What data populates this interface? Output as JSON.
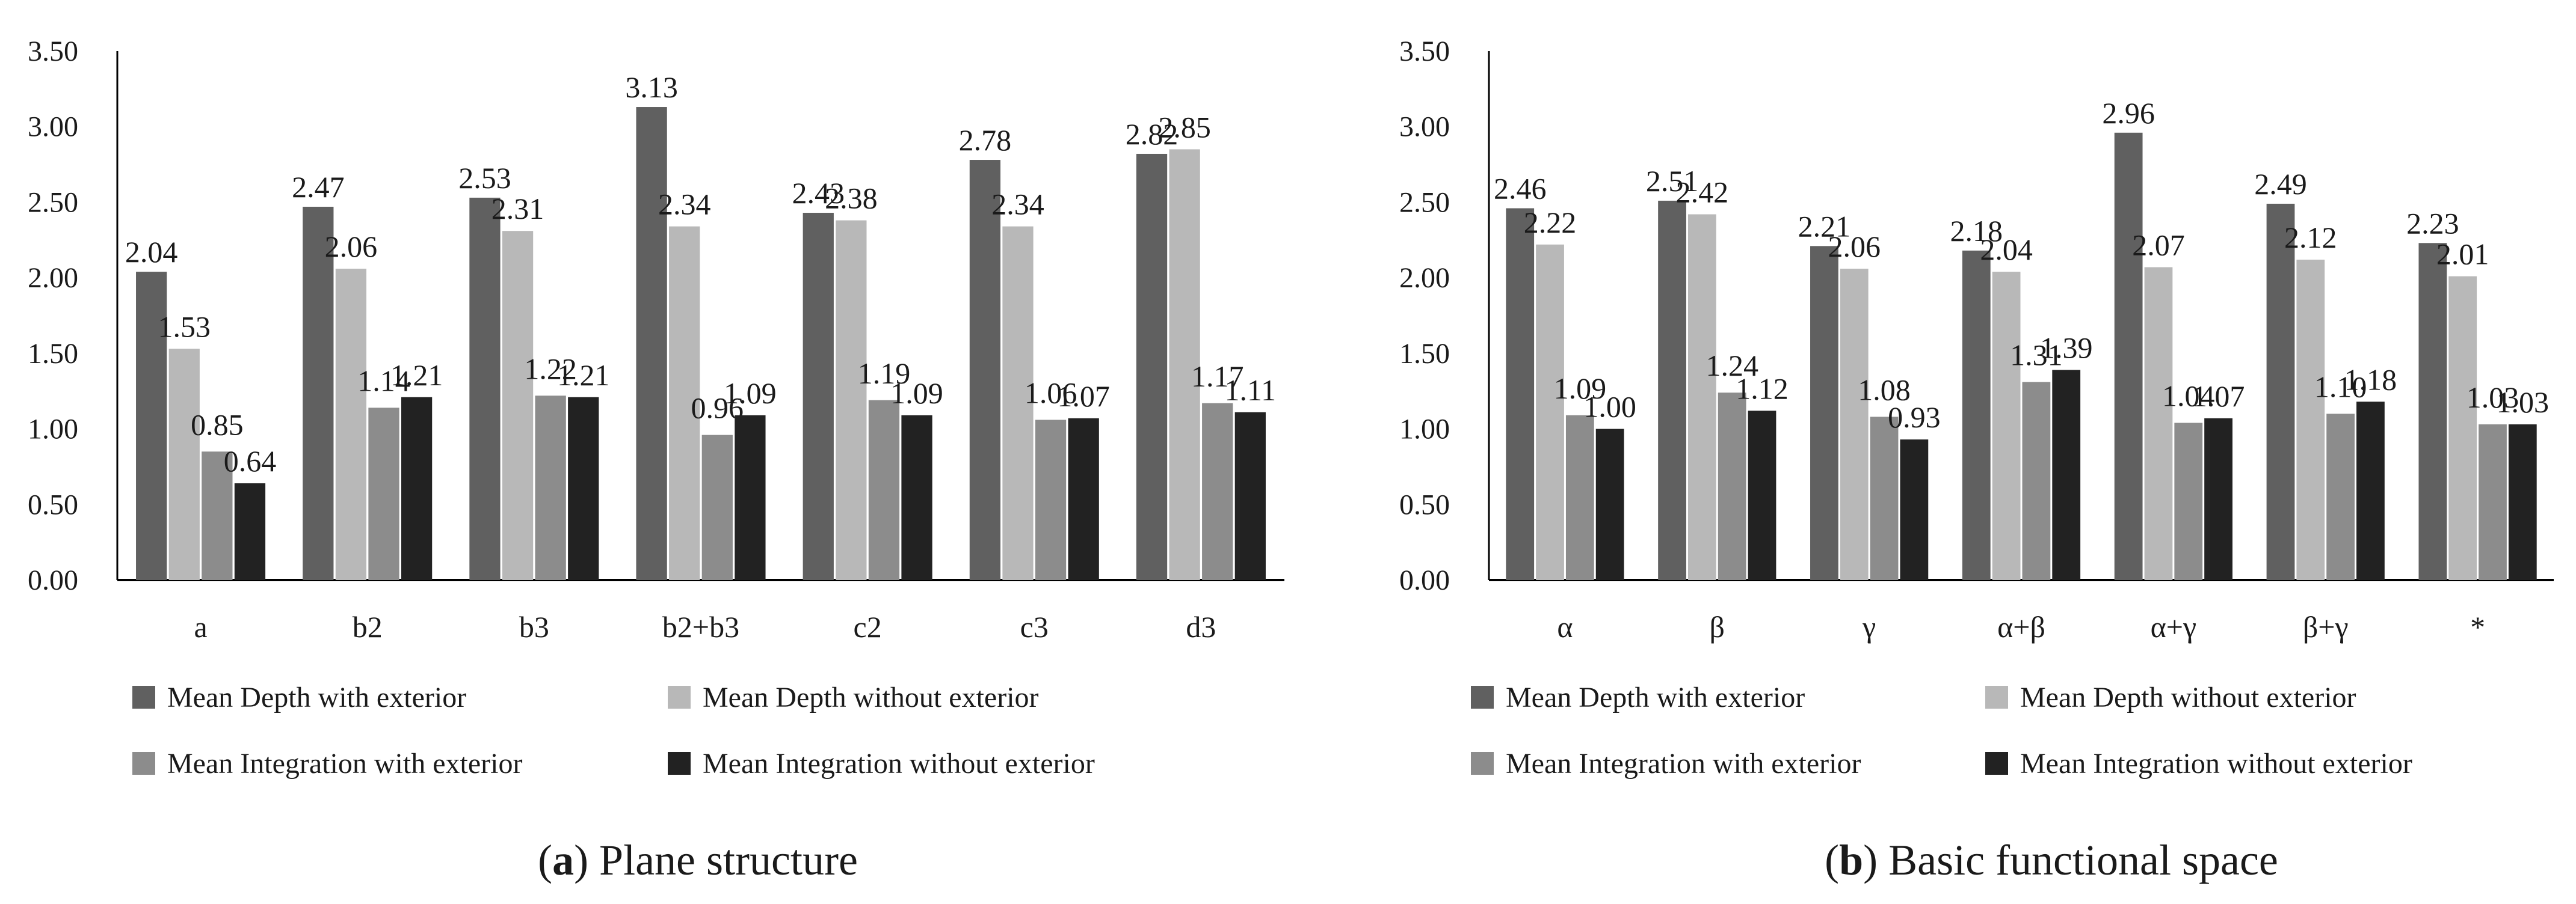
{
  "colors": {
    "depth_with": "#606060",
    "depth_without": "#b8b8b8",
    "integration_with": "#8c8c8c",
    "integration_without": "#222222",
    "axis": "#000000",
    "text": "#1a1a1a"
  },
  "chart_data": [
    {
      "type": "bar",
      "caption_letter": "a",
      "caption_text": " Plane structure",
      "categories": [
        "a",
        "b2",
        "b3",
        "b2+b3",
        "c2",
        "c3",
        "d3"
      ],
      "ylim": [
        0,
        3.5
      ],
      "ytick_labels": [
        "0.00",
        "0.50",
        "1.00",
        "1.50",
        "2.00",
        "2.50",
        "3.00",
        "3.50"
      ],
      "series": [
        {
          "name": "Mean Depth with exterior",
          "values": [
            2.04,
            2.47,
            2.53,
            3.13,
            2.43,
            2.78,
            2.82
          ],
          "labels": [
            "2.04",
            "2.47",
            "2.53",
            "3.13",
            "2.43",
            "2.78",
            "2.82"
          ]
        },
        {
          "name": "Mean Depth without exterior",
          "values": [
            1.53,
            2.06,
            2.31,
            2.34,
            2.38,
            2.34,
            2.85
          ],
          "labels": [
            "1.53",
            "2.06",
            "2.31",
            "2.34",
            "2.38",
            "2.34",
            "2.85"
          ]
        },
        {
          "name": "Mean Integration with exterior",
          "values": [
            0.85,
            1.14,
            1.22,
            0.96,
            1.19,
            1.06,
            1.17
          ],
          "labels": [
            "0.85",
            "1.14",
            "1.22",
            "0.96",
            "1.19",
            "1.06",
            "1.17"
          ]
        },
        {
          "name": "Mean Integration without exterior",
          "values": [
            0.64,
            1.21,
            1.21,
            1.09,
            1.09,
            1.07,
            1.11
          ],
          "labels": [
            "0.64",
            "1.21",
            "1.21",
            "1.09",
            "1.09",
            "1.07",
            "1.11"
          ]
        }
      ]
    },
    {
      "type": "bar",
      "caption_letter": "b",
      "caption_text": " Basic functional space",
      "categories": [
        "α",
        "β",
        "γ",
        "α+β",
        "α+γ",
        "β+γ",
        "*"
      ],
      "ylim": [
        0,
        3.5
      ],
      "ytick_labels": [
        "0.00",
        "0.50",
        "1.00",
        "1.50",
        "2.00",
        "2.50",
        "3.00",
        "3.50"
      ],
      "series": [
        {
          "name": "Mean Depth with exterior",
          "values": [
            2.46,
            2.51,
            2.21,
            2.18,
            2.96,
            2.49,
            2.23
          ],
          "labels": [
            "2.46",
            "2.51",
            "2.21",
            "2.18",
            "2.96",
            "2.49",
            "2.23"
          ]
        },
        {
          "name": "Mean Depth without exterior",
          "values": [
            2.22,
            2.42,
            2.06,
            2.04,
            2.07,
            2.12,
            2.01
          ],
          "labels": [
            "2.22",
            "2.42",
            "2.06",
            "2.04",
            "2.07",
            "2.12",
            "2.01"
          ]
        },
        {
          "name": "Mean Integration with exterior",
          "values": [
            1.09,
            1.24,
            1.08,
            1.31,
            1.04,
            1.1,
            1.03
          ],
          "labels": [
            "1.09",
            "1.24",
            "1.08",
            "1.31",
            "1.04",
            "1.10",
            "1.03"
          ]
        },
        {
          "name": "Mean Integration without exterior",
          "values": [
            1.0,
            1.12,
            0.93,
            1.39,
            1.07,
            1.18,
            1.03
          ],
          "labels": [
            "1.00",
            "1.12",
            "0.93",
            "1.39",
            "1.07",
            "1.18",
            "1.03"
          ]
        }
      ]
    }
  ]
}
